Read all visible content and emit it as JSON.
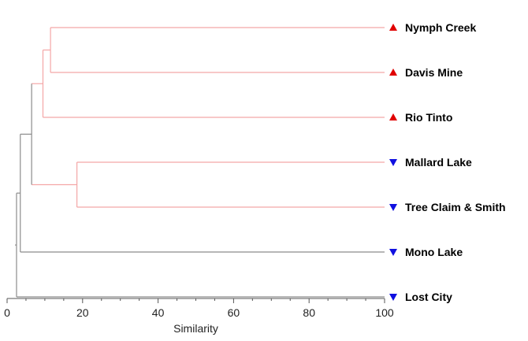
{
  "chart_data": {
    "type": "dendrogram",
    "xlabel": "Similarity",
    "xlim": [
      0,
      100
    ],
    "xticks": [
      0,
      20,
      40,
      60,
      80,
      100
    ],
    "leaves": [
      {
        "name": "Nymph Creek",
        "marker": "up-triangle",
        "color": "#e00000"
      },
      {
        "name": "Davis Mine",
        "marker": "up-triangle",
        "color": "#e00000"
      },
      {
        "name": "Rio Tinto",
        "marker": "up-triangle",
        "color": "#e00000"
      },
      {
        "name": "Mallard Lake",
        "marker": "down-triangle",
        "color": "#1010e0"
      },
      {
        "name": "Tree Claim & Smith",
        "marker": "down-triangle",
        "color": "#1010e0"
      },
      {
        "name": "Mono Lake",
        "marker": "down-triangle",
        "color": "#1010e0"
      },
      {
        "name": "Lost City",
        "marker": "down-triangle",
        "color": "#1010e0"
      }
    ],
    "merges": [
      {
        "left": "L0",
        "right": "L1",
        "similarity": 11.5,
        "color": "#f4a6a6"
      },
      {
        "left": "M0",
        "right": "L2",
        "similarity": 9.5,
        "color": "#f4a6a6"
      },
      {
        "left": "L3",
        "right": "L4",
        "similarity": 18.5,
        "color": "#f4a6a6"
      },
      {
        "left": "M1",
        "right": "M2",
        "similarity": 6.5,
        "color": "#8c8c8c"
      },
      {
        "left": "M3",
        "right": "L5",
        "similarity": 3.5,
        "color": "#8c8c8c"
      },
      {
        "left": "M4",
        "right": "L6",
        "similarity": 2.5,
        "color": "#8c8c8c"
      }
    ],
    "leaf_line_colors": [
      "#f4a6a6",
      "#f4a6a6",
      "#f4a6a6",
      "#f4a6a6",
      "#f4a6a6",
      "#8c8c8c",
      "#8c8c8c"
    ]
  }
}
